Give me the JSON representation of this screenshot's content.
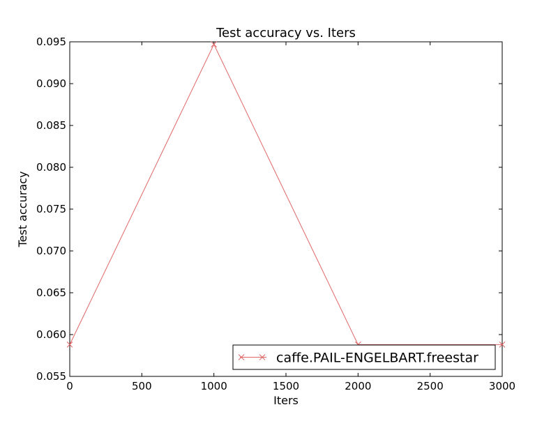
{
  "chart_data": {
    "type": "line",
    "title": "Test accuracy  vs. Iters",
    "xlabel": "Iters",
    "ylabel": "Test accuracy",
    "xlim": [
      0,
      3000
    ],
    "ylim": [
      0.055,
      0.095
    ],
    "xticks": [
      "0",
      "500",
      "1000",
      "1500",
      "2000",
      "2500",
      "3000"
    ],
    "yticks": [
      "0.055",
      "0.060",
      "0.065",
      "0.070",
      "0.075",
      "0.080",
      "0.085",
      "0.090",
      "0.095"
    ],
    "grid": false,
    "legend_position": "lower-right",
    "series": [
      {
        "name": "caffe.PAIL-ENGELBART.freestar",
        "color": "#e06666",
        "marker": "x",
        "x": [
          0,
          1000,
          2000,
          3000
        ],
        "y": [
          0.0588,
          0.0947,
          0.0588,
          0.0588
        ]
      }
    ]
  }
}
